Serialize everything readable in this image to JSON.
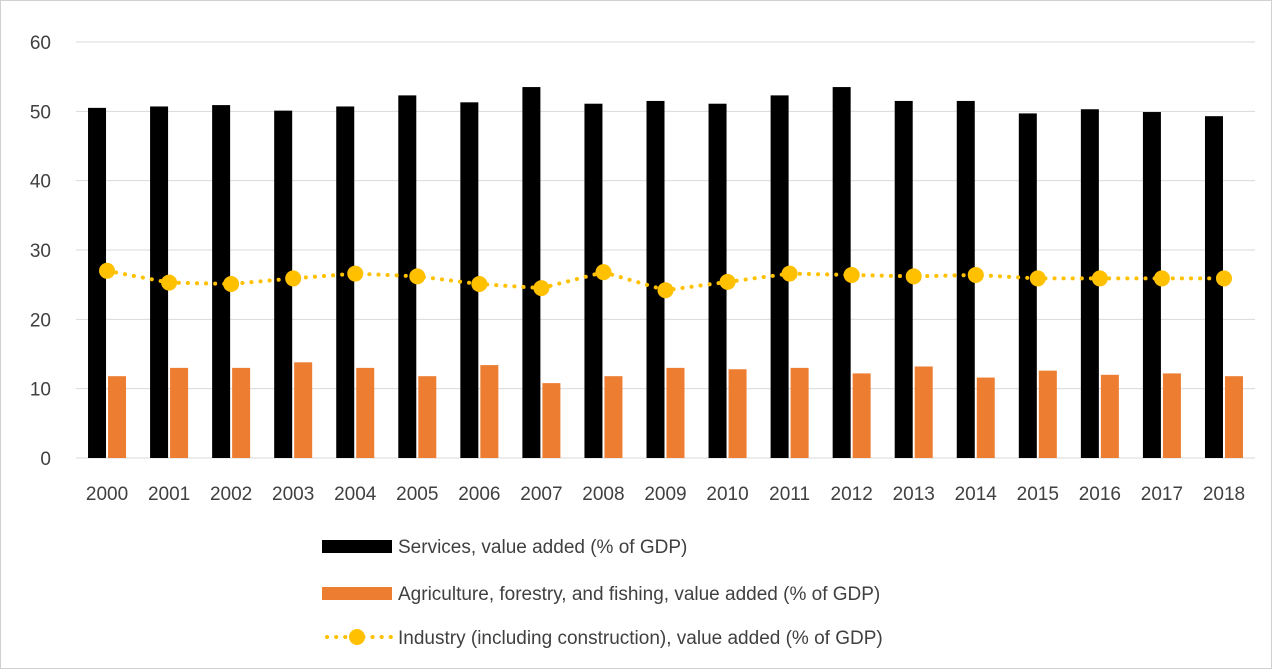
{
  "chart_data": {
    "type": "bar",
    "categories": [
      "2000",
      "2001",
      "2002",
      "2003",
      "2004",
      "2005",
      "2006",
      "2007",
      "2008",
      "2009",
      "2010",
      "2011",
      "2012",
      "2013",
      "2014",
      "2015",
      "2016",
      "2017",
      "2018"
    ],
    "series": [
      {
        "name": "Services, value added (% of GDP)",
        "type": "bar",
        "color": "#000000",
        "values": [
          50.5,
          50.7,
          50.9,
          50.1,
          50.7,
          52.3,
          51.3,
          53.5,
          51.1,
          51.5,
          51.1,
          52.3,
          53.5,
          51.5,
          51.5,
          49.7,
          50.3,
          49.9,
          49.3
        ]
      },
      {
        "name": "Agriculture, forestry, and fishing, value added (% of GDP)",
        "type": "bar",
        "color": "#ED7D31",
        "values": [
          11.8,
          13.0,
          13.0,
          13.8,
          13.0,
          11.8,
          13.4,
          10.8,
          11.8,
          13.0,
          12.8,
          13.0,
          12.2,
          13.2,
          11.6,
          12.6,
          12.0,
          12.2,
          11.8
        ]
      },
      {
        "name": "Industry (including construction), value added (% of GDP)",
        "type": "line",
        "color": "#FFC000",
        "values": [
          27.0,
          25.3,
          25.1,
          25.9,
          26.6,
          26.2,
          25.1,
          24.5,
          26.8,
          24.2,
          25.4,
          26.6,
          26.4,
          26.2,
          26.4,
          25.9,
          25.9,
          25.9,
          25.9
        ]
      }
    ],
    "ylim": [
      0,
      60
    ],
    "yticks": [
      "0",
      "10",
      "20",
      "30",
      "40",
      "50",
      "60"
    ],
    "grid": true,
    "legend_position": "bottom",
    "title": "",
    "xlabel": "",
    "ylabel": ""
  }
}
